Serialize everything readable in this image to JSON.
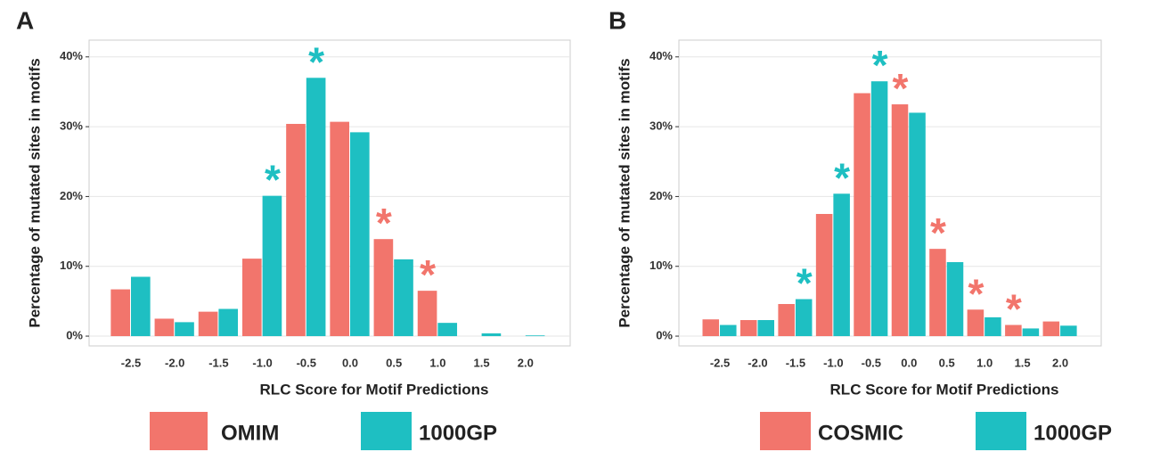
{
  "chart_data": [
    {
      "type": "bar",
      "panel_label": "A",
      "x_label": "RLC Score for Motif Predictions",
      "y_label": "Percentage of mutated sites in motifs",
      "categories": [
        "-2.5",
        "-2.0",
        "-1.5",
        "-1.0",
        "-0.5",
        "0.0",
        "0.5",
        "1.0",
        "1.5",
        "2.0"
      ],
      "series": [
        {
          "name": "OMIM",
          "color": "#f2756c",
          "values": [
            6.7,
            2.5,
            3.5,
            11.1,
            30.4,
            30.7,
            13.9,
            6.5,
            0,
            0
          ]
        },
        {
          "name": "1000GP",
          "color": "#1ebfc2",
          "values": [
            8.5,
            2.0,
            3.9,
            20.1,
            37.0,
            29.2,
            11.0,
            1.9,
            0.4,
            0.1
          ]
        }
      ],
      "annotations": [
        {
          "text": "*",
          "x": "-1.0",
          "series": "1000GP"
        },
        {
          "text": "*",
          "x": "-0.5",
          "series": "1000GP"
        },
        {
          "text": "*",
          "x": "0.5",
          "series": "OMIM"
        },
        {
          "text": "*",
          "x": "1.0",
          "series": "OMIM"
        }
      ],
      "ylim": [
        -1.4,
        42.4
      ],
      "yticks": [
        {
          "value": 0,
          "label": "0%"
        },
        {
          "value": 10,
          "label": "10%"
        },
        {
          "value": 20,
          "label": "20%"
        },
        {
          "value": 30,
          "label": "30%"
        },
        {
          "value": 40,
          "label": "40%"
        }
      ],
      "grid": true,
      "legend_position": "bottom"
    },
    {
      "type": "bar",
      "panel_label": "B",
      "x_label": "RLC Score for Motif Predictions",
      "y_label": "Percentage of mutated sites in motifs",
      "categories": [
        "-2.5",
        "-2.0",
        "-1.5",
        "-1.0",
        "-0.5",
        "0.0",
        "0.5",
        "1.0",
        "1.5",
        "2.0"
      ],
      "series": [
        {
          "name": "COSMIC",
          "color": "#f2756c",
          "values": [
            2.4,
            2.3,
            4.6,
            17.5,
            34.8,
            33.2,
            12.5,
            3.8,
            1.6,
            2.1
          ]
        },
        {
          "name": "1000GP",
          "color": "#1ebfc2",
          "values": [
            1.6,
            2.3,
            5.3,
            20.4,
            36.5,
            32.0,
            10.6,
            2.7,
            1.1,
            1.5
          ]
        }
      ],
      "annotations": [
        {
          "text": "*",
          "x": "-1.5",
          "series": "1000GP"
        },
        {
          "text": "*",
          "x": "-1.0",
          "series": "1000GP"
        },
        {
          "text": "*",
          "x": "-0.5",
          "series": "1000GP"
        },
        {
          "text": "*",
          "x": "0.0",
          "series": "COSMIC"
        },
        {
          "text": "*",
          "x": "0.5",
          "series": "COSMIC"
        },
        {
          "text": "*",
          "x": "1.0",
          "series": "COSMIC"
        },
        {
          "text": "*",
          "x": "1.5",
          "series": "COSMIC"
        }
      ],
      "ylim": [
        -1.4,
        42.4
      ],
      "yticks": [
        {
          "value": 0,
          "label": "0%"
        },
        {
          "value": 10,
          "label": "10%"
        },
        {
          "value": 20,
          "label": "20%"
        },
        {
          "value": 30,
          "label": "30%"
        },
        {
          "value": 40,
          "label": "40%"
        }
      ],
      "grid": true,
      "legend_position": "bottom"
    }
  ]
}
